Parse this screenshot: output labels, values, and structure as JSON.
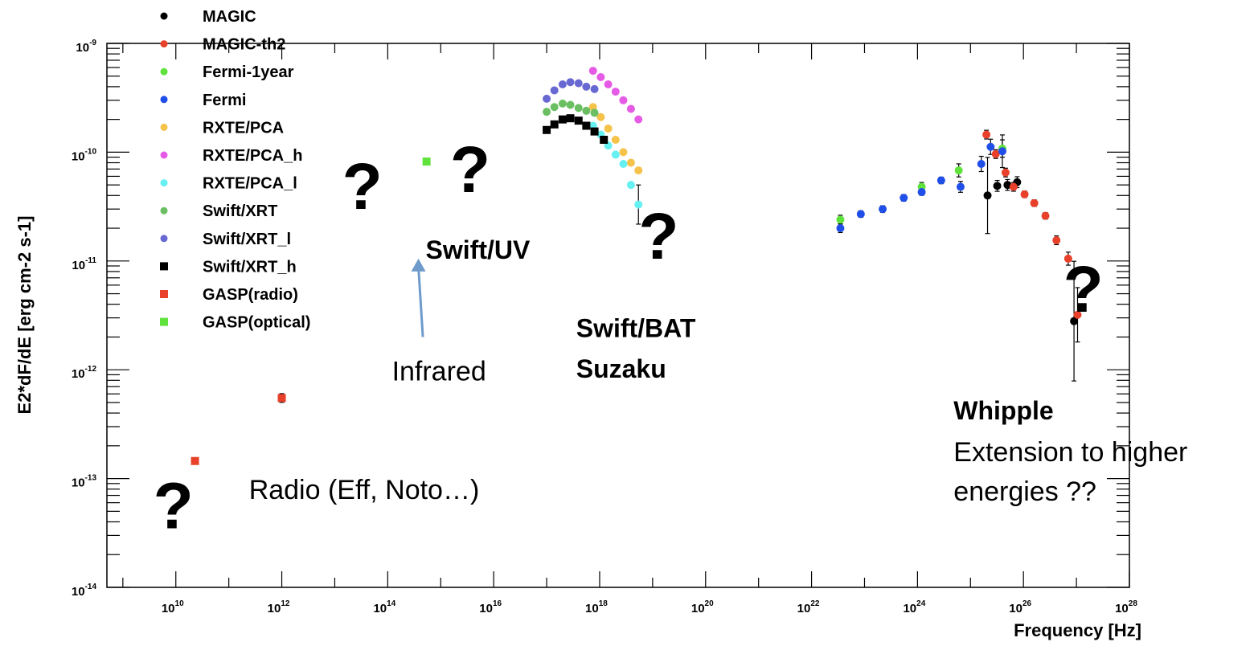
{
  "chart_data": {
    "type": "scatter",
    "title": "",
    "xlabel": "Frequency [Hz]",
    "ylabel": "E2*dF/dE [erg cm-2 s-1]",
    "xscale": "log",
    "yscale": "log",
    "xlim": [
      500000000.0,
      1e+28
    ],
    "ylim": [
      1e-14,
      1e-09
    ],
    "grid": false,
    "legend_position": "top-left",
    "x_ticks": [
      {
        "base": "10",
        "exp": "10",
        "value": 10000000000.0
      },
      {
        "base": "10",
        "exp": "12",
        "value": 1000000000000.0
      },
      {
        "base": "10",
        "exp": "14",
        "value": 100000000000000.0
      },
      {
        "base": "10",
        "exp": "16",
        "value": 1e+16
      },
      {
        "base": "10",
        "exp": "18",
        "value": 1e+18
      },
      {
        "base": "10",
        "exp": "20",
        "value": 1e+20
      },
      {
        "base": "10",
        "exp": "22",
        "value": 1e+22
      },
      {
        "base": "10",
        "exp": "24",
        "value": 1e+24
      },
      {
        "base": "10",
        "exp": "26",
        "value": 1e+26
      },
      {
        "base": "10",
        "exp": "28",
        "value": 1e+28
      }
    ],
    "y_ticks": [
      {
        "base": "10",
        "exp": "-14",
        "value": 1e-14
      },
      {
        "base": "10",
        "exp": "-13",
        "value": 1e-13
      },
      {
        "base": "10",
        "exp": "-12",
        "value": 1e-12
      },
      {
        "base": "10",
        "exp": "-11",
        "value": 1e-11
      },
      {
        "base": "10",
        "exp": "-10",
        "value": 1e-10
      },
      {
        "base": "10",
        "exp": "-9",
        "value": 1e-09
      }
    ],
    "series": [
      {
        "name": "MAGIC",
        "color": "#000000",
        "marker": "circle",
        "x": [
          2.1e+25,
          3.2e+25,
          5e+25,
          7.6e+25,
          9e+26
        ],
        "y": [
          4e-11,
          4.9e-11,
          5e-11,
          5.3e-11,
          2.8e-12
        ],
        "yerr": [
          0.35,
          0.05,
          0.05,
          0.05,
          0.55
        ]
      },
      {
        "name": "MAGIC-th2",
        "color": "#e8402a",
        "marker": "circle",
        "x": [
          2e+25,
          3e+25,
          4.6e+25,
          6.5e+25,
          1.05e+26,
          1.6e+26,
          2.6e+26,
          4.2e+26,
          7e+26,
          1.05e+27
        ],
        "y": [
          1.45e-10,
          9.6e-11,
          6.5e-11,
          4.8e-11,
          4.1e-11,
          3.4e-11,
          2.6e-11,
          1.55e-11,
          1.05e-11,
          3.2e-12
        ],
        "yerr": [
          0.04,
          0.04,
          0.04,
          0.04,
          0.03,
          0.03,
          0.03,
          0.04,
          0.06,
          0.25
        ]
      },
      {
        "name": "Fermi-1year",
        "color": "#5fe23c",
        "marker": "circle",
        "x": [
          3.5e+22,
          1.2e+24,
          6e+24,
          4e+25
        ],
        "y": [
          2.4e-11,
          4.8e-11,
          6.8e-11,
          1.08e-10
        ],
        "yerr": [
          0.04,
          0.04,
          0.06,
          0.08
        ]
      },
      {
        "name": "Fermi",
        "color": "#1f4ee8",
        "marker": "circle",
        "x": [
          3.5e+22,
          8.5e+22,
          2.2e+23,
          5.5e+23,
          1.2e+24,
          2.8e+24,
          6.5e+24,
          1.6e+25,
          2.4e+25,
          4e+25
        ],
        "y": [
          2e-11,
          2.7e-11,
          3e-11,
          3.8e-11,
          4.3e-11,
          5.5e-11,
          4.8e-11,
          7.8e-11,
          1.12e-10,
          1.02e-10
        ],
        "yerr": [
          0.04,
          0.03,
          0.03,
          0.03,
          0.03,
          0.03,
          0.05,
          0.07,
          0.07,
          0.15
        ]
      },
      {
        "name": "RXTE/PCA",
        "color": "#f5c24a",
        "marker": "circle",
        "x": [
          7.5e+17,
          1.05e+18,
          1.45e+18,
          2e+18,
          2.8e+18,
          3.9e+18,
          5.4e+18
        ],
        "y": [
          2.6e-10,
          2.1e-10,
          1.65e-10,
          1.3e-10,
          1e-10,
          8e-11,
          6.8e-11
        ],
        "yerr": [
          0.01,
          0.01,
          0.01,
          0.01,
          0.01,
          0.01,
          0.01
        ]
      },
      {
        "name": "RXTE/PCA_h",
        "color": "#e65be6",
        "marker": "circle",
        "x": [
          7.5e+17,
          1.05e+18,
          1.45e+18,
          2e+18,
          2.8e+18,
          3.9e+18,
          5.4e+18
        ],
        "y": [
          5.6e-10,
          4.9e-10,
          4.2e-10,
          3.6e-10,
          3e-10,
          2.5e-10,
          2e-10
        ],
        "yerr": [
          0.01,
          0.01,
          0.01,
          0.01,
          0.01,
          0.01,
          0.01
        ]
      },
      {
        "name": "RXTE/PCA_l",
        "color": "#66f0f2",
        "marker": "circle",
        "x": [
          7.5e+17,
          1.05e+18,
          1.45e+18,
          2e+18,
          2.8e+18,
          3.9e+18,
          5.4e+18
        ],
        "y": [
          1.75e-10,
          1.45e-10,
          1.15e-10,
          9.5e-11,
          7.8e-11,
          5e-11,
          3.3e-11
        ],
        "yerr": [
          0.01,
          0.01,
          0.01,
          0.01,
          0.01,
          0.02,
          0.18
        ]
      },
      {
        "name": "Swift/XRT",
        "color": "#6bbf62",
        "marker": "circle",
        "x": [
          1e+17,
          1.4e+17,
          2e+17,
          2.8e+17,
          4e+17,
          5.6e+17,
          8e+17
        ],
        "y": [
          2.35e-10,
          2.6e-10,
          2.8e-10,
          2.72e-10,
          2.55e-10,
          2.4e-10,
          2.3e-10
        ],
        "yerr": [
          0.01,
          0.01,
          0.01,
          0.01,
          0.01,
          0.01,
          0.01
        ]
      },
      {
        "name": "Swift/XRT_l",
        "color": "#6868d2",
        "marker": "circle",
        "x": [
          1e+17,
          1.4e+17,
          2e+17,
          2.8e+17,
          4e+17,
          5.6e+17,
          8e+17
        ],
        "y": [
          3.1e-10,
          3.7e-10,
          4.2e-10,
          4.4e-10,
          4.3e-10,
          4e-10,
          3.8e-10
        ],
        "yerr": [
          0.01,
          0.01,
          0.01,
          0.01,
          0.01,
          0.01,
          0.01
        ]
      },
      {
        "name": "Swift/XRT_h",
        "color": "#000000",
        "marker": "square",
        "x": [
          1e+17,
          1.4e+17,
          2e+17,
          2.8e+17,
          4e+17,
          5.6e+17,
          8e+17,
          1.2e+18
        ],
        "y": [
          1.6e-10,
          1.8e-10,
          2e-10,
          2.05e-10,
          1.95e-10,
          1.75e-10,
          1.55e-10,
          1.3e-10
        ],
        "yerr": [
          0.01,
          0.01,
          0.01,
          0.01,
          0.01,
          0.01,
          0.01,
          0.01
        ]
      },
      {
        "name": "GASP(radio)",
        "color": "#e8402a",
        "marker": "square",
        "x": [
          23000000000.0,
          1000000000000.0
        ],
        "y": [
          1.45e-13,
          5.5e-13
        ],
        "yerr": [
          0.0,
          0.04
        ]
      },
      {
        "name": "GASP(optical)",
        "color": "#5fe23c",
        "marker": "square",
        "x": [
          540000000000000.0
        ],
        "y": [
          8.2e-11
        ],
        "yerr": [
          0.0
        ]
      }
    ],
    "annotations": [
      {
        "kind": "question",
        "text": "?",
        "x": 33000000000000.0,
        "y": 3e-11
      },
      {
        "kind": "question",
        "text": "?",
        "x": 3600000000000000.0,
        "y": 4.3e-11
      },
      {
        "kind": "question",
        "text": "?",
        "x": 1.3e+19,
        "y": 1.05e-11
      },
      {
        "kind": "question",
        "text": "?",
        "x": 1.35e+27,
        "y": 3.4e-12
      },
      {
        "kind": "question",
        "text": "?",
        "x": 9000000000.0,
        "y": 3.5e-14
      },
      {
        "kind": "bold",
        "text": "Swift/UV",
        "x": 520000000000000.0,
        "y": 1.05e-11
      },
      {
        "kind": "bold",
        "text": "Swift/BAT",
        "x": 3.6e+17,
        "y": 2e-12
      },
      {
        "kind": "bold",
        "text": "Suzaku",
        "x": 3.6e+17,
        "y": 8.5e-13
      },
      {
        "kind": "plain",
        "text": "Infrared",
        "x": 120000000000000.0,
        "y": 8e-13
      },
      {
        "kind": "plain",
        "text": "Radio (Eff, Noto…)",
        "x": 240000000000.0,
        "y": 6.5e-14
      },
      {
        "kind": "bold",
        "text": "Whipple",
        "x": 4.8e+24,
        "y": 3.5e-13
      },
      {
        "kind": "plain",
        "text": "Extension to higher",
        "x": 4.8e+24,
        "y": 1.45e-13
      },
      {
        "kind": "plain",
        "text": "energies ??",
        "x": 4.8e+24,
        "y": 6.3e-14
      }
    ],
    "arrow": {
      "from": {
        "x": 460000000000000.0,
        "y": 2e-12
      },
      "to": {
        "x": 380000000000000.0,
        "y": 1.05e-11
      },
      "color": "#6e9bcc"
    }
  }
}
